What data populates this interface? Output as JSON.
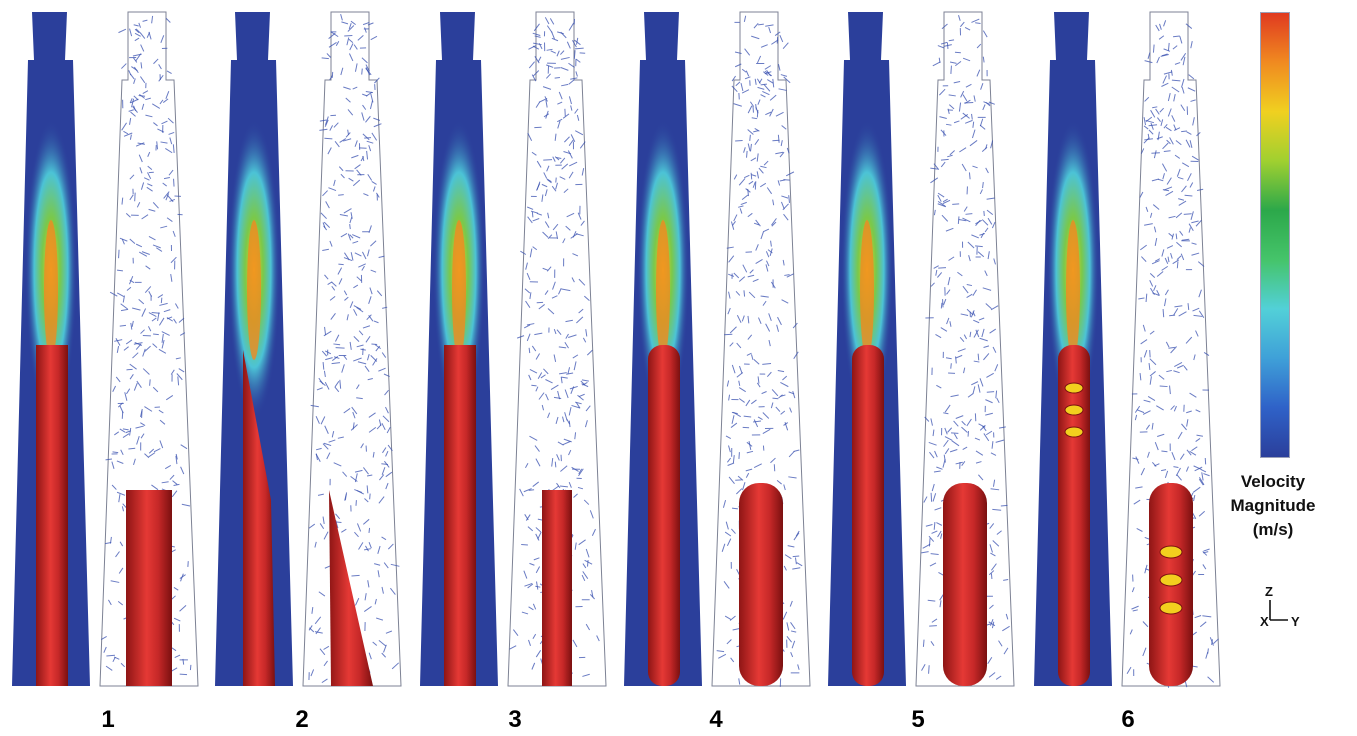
{
  "cases": [
    {
      "label": "1",
      "fin": "cyl"
    },
    {
      "label": "2",
      "fin": "wedge"
    },
    {
      "label": "3",
      "fin": "step"
    },
    {
      "label": "4",
      "fin": "shoulder"
    },
    {
      "label": "5",
      "fin": "shoulder"
    },
    {
      "label": "6",
      "fin": "holes"
    }
  ],
  "colorbar": {
    "title_line1": "Velocity",
    "title_line2": "Magnitude",
    "title_line3": "(m/s)",
    "colors": [
      "#2b3f9b",
      "#2f62c8",
      "#3fa0d8",
      "#52d0d8",
      "#45c46a",
      "#2ca84a",
      "#a0d030",
      "#f0d020",
      "#f08a20",
      "#e03a20"
    ]
  },
  "axis": {
    "z": "Z",
    "x": "X",
    "y": "Y"
  },
  "colors": {
    "background": "#ffffff",
    "fluid_blue": "#2b3f9b",
    "tube_red": "#c62828",
    "tube_dark": "#8e1515",
    "vector_blue": "#3850b0",
    "outline": "#7d8294"
  }
}
